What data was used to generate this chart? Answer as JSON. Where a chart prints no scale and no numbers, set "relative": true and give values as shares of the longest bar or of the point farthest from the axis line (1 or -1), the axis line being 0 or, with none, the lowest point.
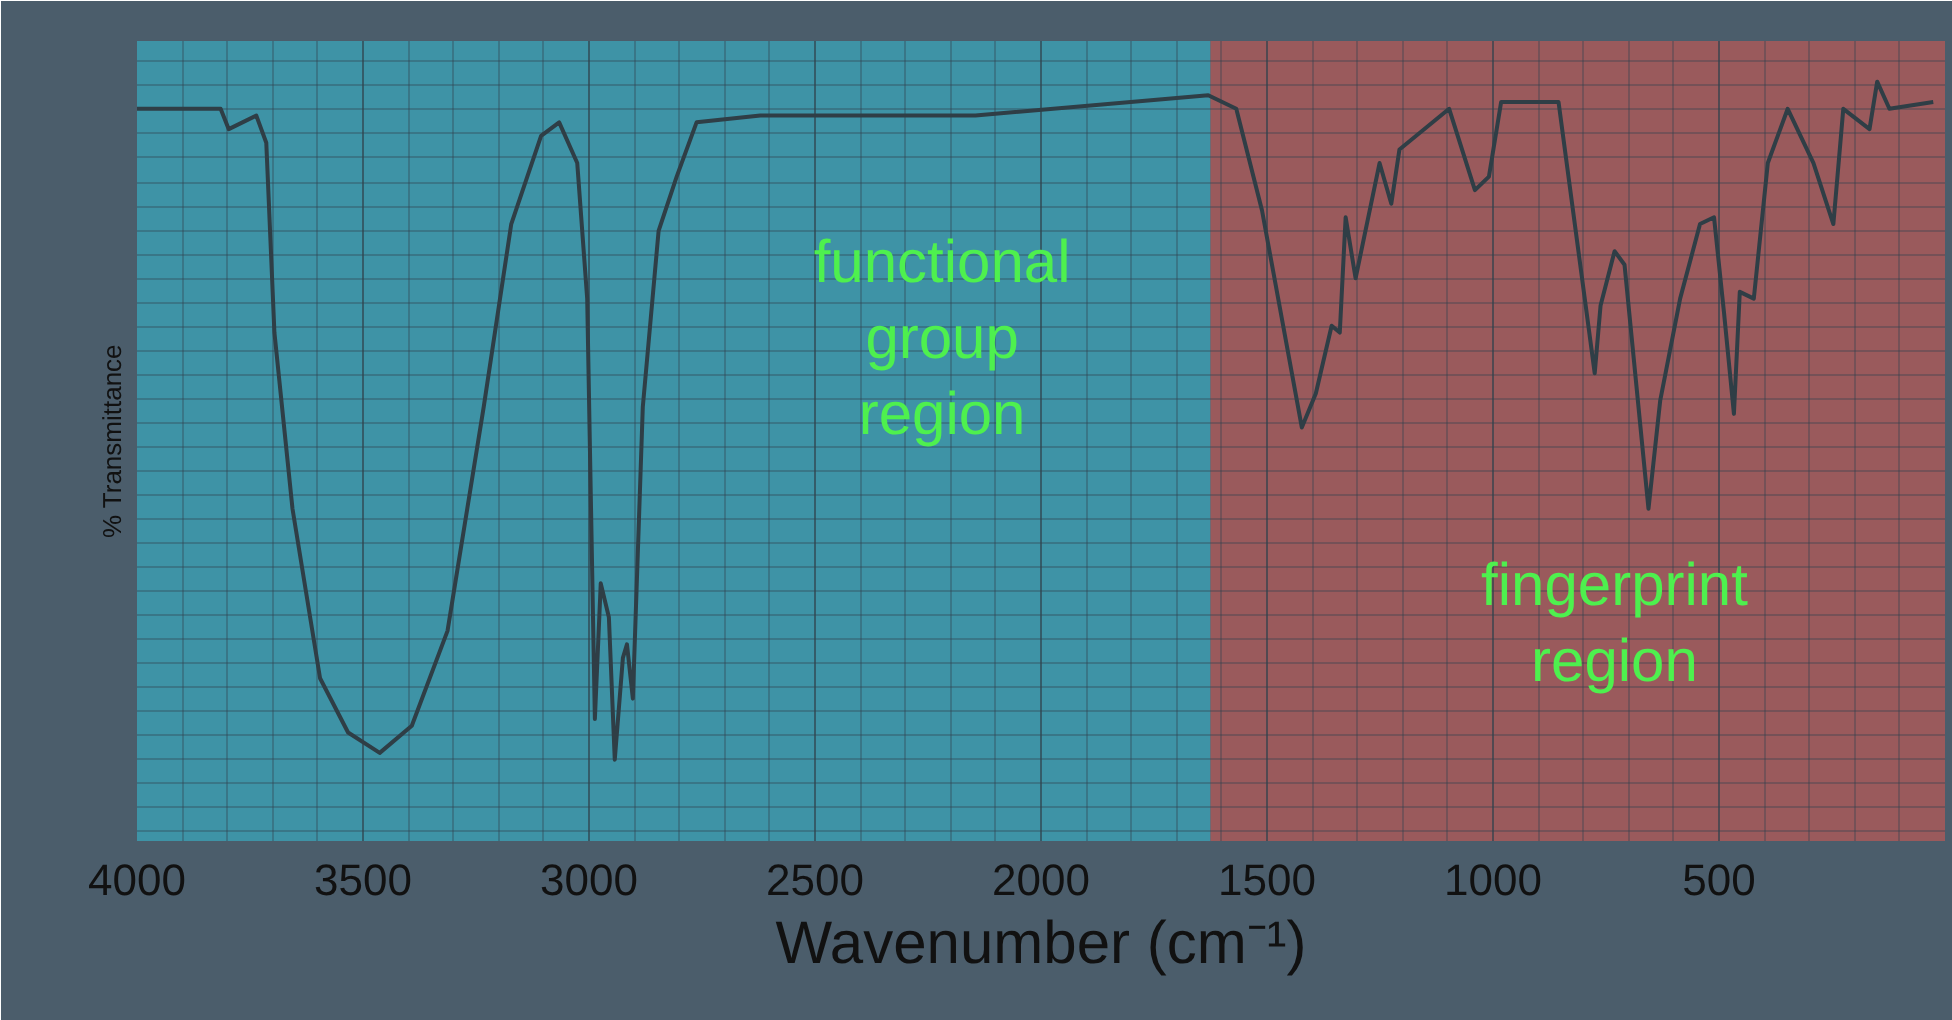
{
  "chart_data": {
    "type": "line",
    "relative": true,
    "xlabel": "Wavenumber (cm⁻¹)",
    "ylabel": "% Transmittance",
    "xlim": [
      4000,
      0
    ],
    "xticks": [
      4000,
      3500,
      3000,
      2500,
      2000,
      1500,
      1000,
      500
    ],
    "tick_labels": "x",
    "grid": true,
    "x": [
      4000,
      3815,
      3797,
      3736,
      3714,
      3696,
      3656,
      3595,
      3533,
      3463,
      3392,
      3313,
      3233,
      3172,
      3106,
      3066,
      3026,
      3004,
      2987,
      2974,
      2956,
      2943,
      2925,
      2916,
      2903,
      2881,
      2846,
      2806,
      2762,
      2621,
      2145,
      1630,
      1568,
      1511,
      1423,
      1392,
      1357,
      1339,
      1326,
      1304,
      1251,
      1225,
      1207,
      1097,
      1040,
      1009,
      982,
      855,
      775,
      762,
      731,
      709,
      656,
      630,
      586,
      542,
      511,
      489,
      467,
      454,
      423,
      392,
      348,
      291,
      247,
      225,
      167,
      150,
      123,
      26
    ],
    "series": [
      {
        "color": "#2f3e46",
        "values": [
          0.96,
          0.96,
          0.93,
          0.95,
          0.91,
          0.63,
          0.37,
          0.12,
          0.04,
          0.01,
          0.05,
          0.19,
          0.52,
          0.79,
          0.92,
          0.94,
          0.88,
          0.68,
          0.06,
          0.26,
          0.21,
          0.0,
          0.15,
          0.17,
          0.09,
          0.52,
          0.78,
          0.86,
          0.94,
          0.95,
          0.95,
          0.98,
          0.96,
          0.81,
          0.49,
          0.54,
          0.64,
          0.63,
          0.8,
          0.71,
          0.88,
          0.82,
          0.9,
          0.96,
          0.84,
          0.86,
          0.97,
          0.97,
          0.57,
          0.67,
          0.75,
          0.73,
          0.37,
          0.53,
          0.68,
          0.79,
          0.8,
          0.66,
          0.51,
          0.69,
          0.68,
          0.88,
          0.96,
          0.88,
          0.79,
          0.96,
          0.93,
          1.0,
          0.96,
          0.97
        ]
      }
    ],
    "bands": [
      {
        "axis": "x",
        "from": 4000,
        "to": 1625,
        "label": "functional\ngroup\nregion",
        "color": "#3e93a6"
      },
      {
        "axis": "x",
        "from": 1625,
        "to": 0,
        "label": "fingerprint\nregion",
        "color": "#9a5a5c"
      }
    ]
  }
}
